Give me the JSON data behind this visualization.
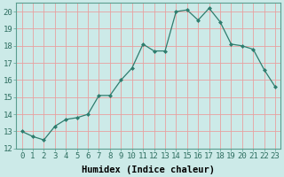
{
  "x": [
    0,
    1,
    2,
    3,
    4,
    5,
    6,
    7,
    8,
    9,
    10,
    11,
    12,
    13,
    14,
    15,
    16,
    17,
    18,
    19,
    20,
    21,
    22,
    23
  ],
  "y": [
    13.0,
    12.7,
    12.5,
    13.3,
    13.7,
    13.8,
    14.0,
    15.1,
    15.1,
    16.0,
    16.7,
    18.1,
    17.7,
    17.7,
    20.0,
    20.1,
    19.5,
    20.2,
    19.4,
    18.1,
    18.0,
    17.8,
    16.6,
    15.6
  ],
  "line_color": "#2e7d6e",
  "marker": "D",
  "marker_size": 2.0,
  "bg_color": "#cceae8",
  "grid_color": "#e8a0a0",
  "xlabel": "Humidex (Indice chaleur)",
  "xlabel_fontsize": 7.5,
  "tick_fontsize": 6.5,
  "xlim": [
    -0.5,
    23.5
  ],
  "ylim": [
    12,
    20.5
  ],
  "yticks": [
    12,
    13,
    14,
    15,
    16,
    17,
    18,
    19,
    20
  ],
  "xticks": [
    0,
    1,
    2,
    3,
    4,
    5,
    6,
    7,
    8,
    9,
    10,
    11,
    12,
    13,
    14,
    15,
    16,
    17,
    18,
    19,
    20,
    21,
    22,
    23
  ]
}
